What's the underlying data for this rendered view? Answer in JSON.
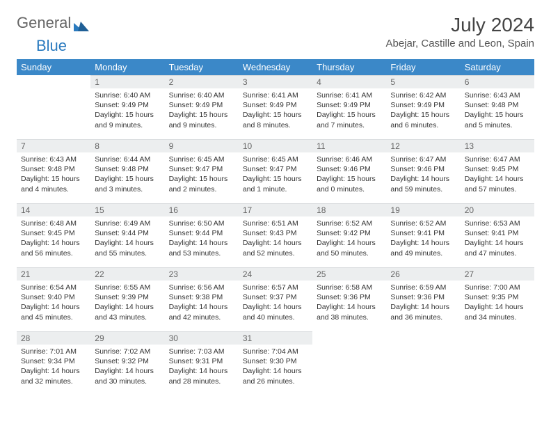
{
  "logo": {
    "part1": "General",
    "part2": "Blue"
  },
  "title": "July 2024",
  "location": "Abejar, Castille and Leon, Spain",
  "colors": {
    "header_bg": "#3b88c8",
    "header_text": "#ffffff",
    "daynum_bg": "#eceeef",
    "daynum_text": "#666666",
    "body_text": "#333333",
    "page_bg": "#ffffff",
    "logo_general": "#666666",
    "logo_blue": "#2b7bbf"
  },
  "weekdays": [
    "Sunday",
    "Monday",
    "Tuesday",
    "Wednesday",
    "Thursday",
    "Friday",
    "Saturday"
  ],
  "weeks": [
    [
      null,
      {
        "n": "1",
        "sunrise": "6:40 AM",
        "sunset": "9:49 PM",
        "daylight": "15 hours and 9 minutes."
      },
      {
        "n": "2",
        "sunrise": "6:40 AM",
        "sunset": "9:49 PM",
        "daylight": "15 hours and 9 minutes."
      },
      {
        "n": "3",
        "sunrise": "6:41 AM",
        "sunset": "9:49 PM",
        "daylight": "15 hours and 8 minutes."
      },
      {
        "n": "4",
        "sunrise": "6:41 AM",
        "sunset": "9:49 PM",
        "daylight": "15 hours and 7 minutes."
      },
      {
        "n": "5",
        "sunrise": "6:42 AM",
        "sunset": "9:49 PM",
        "daylight": "15 hours and 6 minutes."
      },
      {
        "n": "6",
        "sunrise": "6:43 AM",
        "sunset": "9:48 PM",
        "daylight": "15 hours and 5 minutes."
      }
    ],
    [
      {
        "n": "7",
        "sunrise": "6:43 AM",
        "sunset": "9:48 PM",
        "daylight": "15 hours and 4 minutes."
      },
      {
        "n": "8",
        "sunrise": "6:44 AM",
        "sunset": "9:48 PM",
        "daylight": "15 hours and 3 minutes."
      },
      {
        "n": "9",
        "sunrise": "6:45 AM",
        "sunset": "9:47 PM",
        "daylight": "15 hours and 2 minutes."
      },
      {
        "n": "10",
        "sunrise": "6:45 AM",
        "sunset": "9:47 PM",
        "daylight": "15 hours and 1 minute."
      },
      {
        "n": "11",
        "sunrise": "6:46 AM",
        "sunset": "9:46 PM",
        "daylight": "15 hours and 0 minutes."
      },
      {
        "n": "12",
        "sunrise": "6:47 AM",
        "sunset": "9:46 PM",
        "daylight": "14 hours and 59 minutes."
      },
      {
        "n": "13",
        "sunrise": "6:47 AM",
        "sunset": "9:45 PM",
        "daylight": "14 hours and 57 minutes."
      }
    ],
    [
      {
        "n": "14",
        "sunrise": "6:48 AM",
        "sunset": "9:45 PM",
        "daylight": "14 hours and 56 minutes."
      },
      {
        "n": "15",
        "sunrise": "6:49 AM",
        "sunset": "9:44 PM",
        "daylight": "14 hours and 55 minutes."
      },
      {
        "n": "16",
        "sunrise": "6:50 AM",
        "sunset": "9:44 PM",
        "daylight": "14 hours and 53 minutes."
      },
      {
        "n": "17",
        "sunrise": "6:51 AM",
        "sunset": "9:43 PM",
        "daylight": "14 hours and 52 minutes."
      },
      {
        "n": "18",
        "sunrise": "6:52 AM",
        "sunset": "9:42 PM",
        "daylight": "14 hours and 50 minutes."
      },
      {
        "n": "19",
        "sunrise": "6:52 AM",
        "sunset": "9:41 PM",
        "daylight": "14 hours and 49 minutes."
      },
      {
        "n": "20",
        "sunrise": "6:53 AM",
        "sunset": "9:41 PM",
        "daylight": "14 hours and 47 minutes."
      }
    ],
    [
      {
        "n": "21",
        "sunrise": "6:54 AM",
        "sunset": "9:40 PM",
        "daylight": "14 hours and 45 minutes."
      },
      {
        "n": "22",
        "sunrise": "6:55 AM",
        "sunset": "9:39 PM",
        "daylight": "14 hours and 43 minutes."
      },
      {
        "n": "23",
        "sunrise": "6:56 AM",
        "sunset": "9:38 PM",
        "daylight": "14 hours and 42 minutes."
      },
      {
        "n": "24",
        "sunrise": "6:57 AM",
        "sunset": "9:37 PM",
        "daylight": "14 hours and 40 minutes."
      },
      {
        "n": "25",
        "sunrise": "6:58 AM",
        "sunset": "9:36 PM",
        "daylight": "14 hours and 38 minutes."
      },
      {
        "n": "26",
        "sunrise": "6:59 AM",
        "sunset": "9:36 PM",
        "daylight": "14 hours and 36 minutes."
      },
      {
        "n": "27",
        "sunrise": "7:00 AM",
        "sunset": "9:35 PM",
        "daylight": "14 hours and 34 minutes."
      }
    ],
    [
      {
        "n": "28",
        "sunrise": "7:01 AM",
        "sunset": "9:34 PM",
        "daylight": "14 hours and 32 minutes."
      },
      {
        "n": "29",
        "sunrise": "7:02 AM",
        "sunset": "9:32 PM",
        "daylight": "14 hours and 30 minutes."
      },
      {
        "n": "30",
        "sunrise": "7:03 AM",
        "sunset": "9:31 PM",
        "daylight": "14 hours and 28 minutes."
      },
      {
        "n": "31",
        "sunrise": "7:04 AM",
        "sunset": "9:30 PM",
        "daylight": "14 hours and 26 minutes."
      },
      null,
      null,
      null
    ]
  ],
  "labels": {
    "sunrise": "Sunrise:",
    "sunset": "Sunset:",
    "daylight": "Daylight:"
  }
}
